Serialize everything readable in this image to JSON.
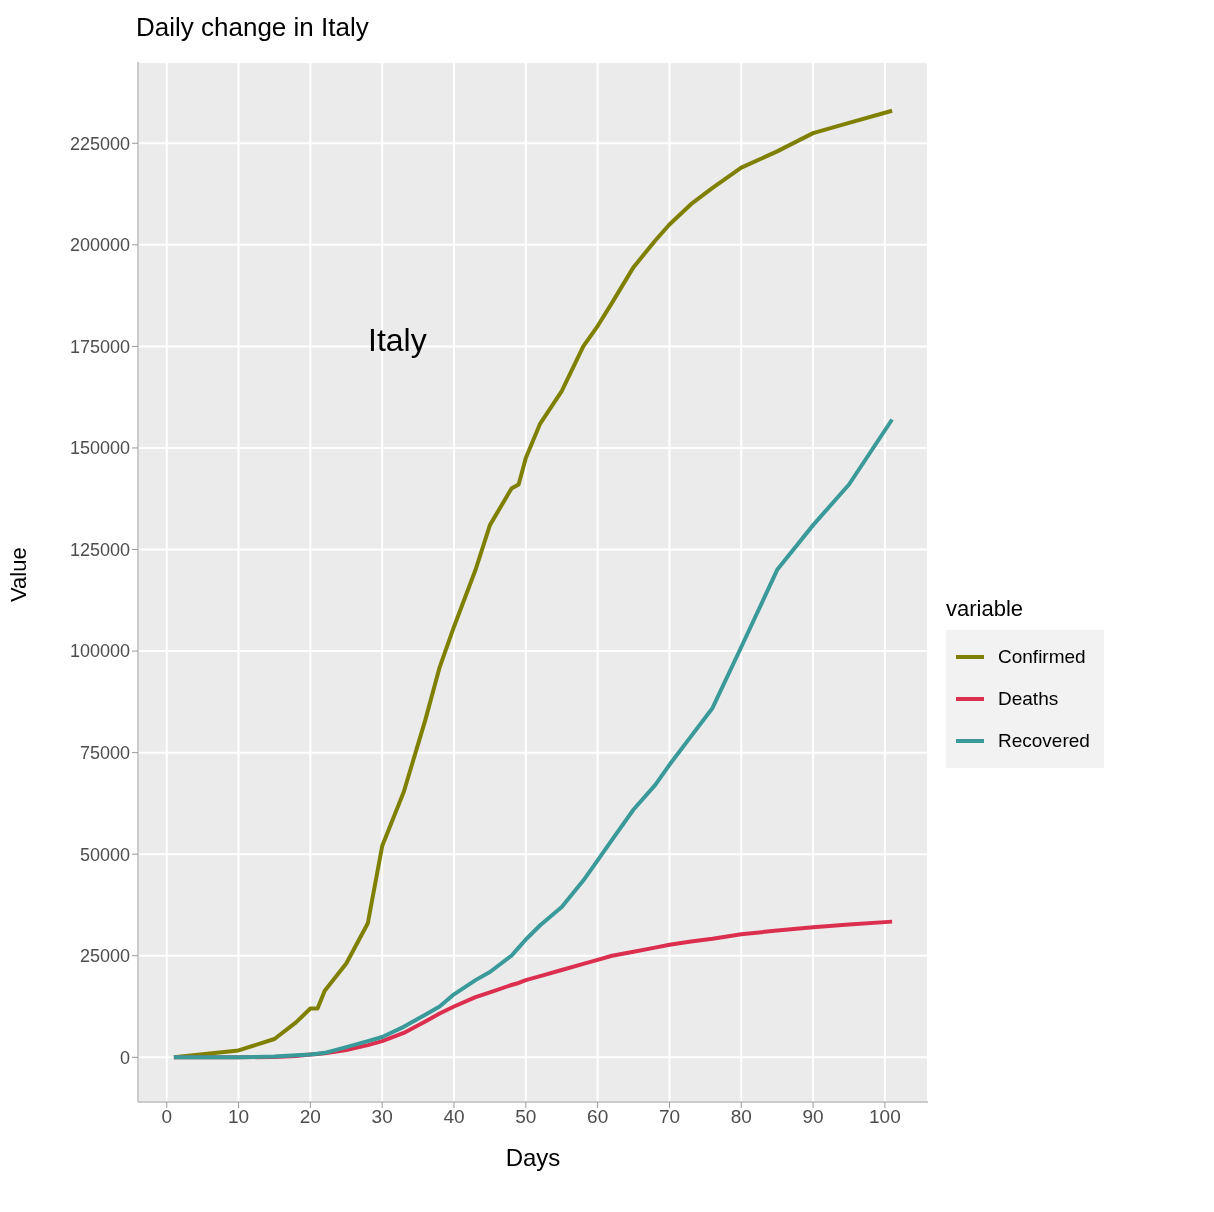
{
  "chart_data": {
    "type": "line",
    "title": "Daily change in Italy",
    "xlabel": "Days",
    "ylabel": "Value",
    "legend_title": "variable",
    "annotations": [
      "Italy"
    ],
    "x": [
      1,
      10,
      15,
      18,
      20,
      21,
      22,
      25,
      28,
      30,
      33,
      36,
      38,
      40,
      43,
      45,
      48,
      49,
      50,
      52,
      55,
      58,
      60,
      62,
      65,
      68,
      70,
      73,
      76,
      80,
      85,
      90,
      95,
      101
    ],
    "series": [
      {
        "name": "Confirmed",
        "color": "#808000",
        "values": [
          0,
          1700,
          4500,
          8600,
          12000,
          12000,
          16400,
          23100,
          33000,
          52000,
          65300,
          83000,
          96000,
          106000,
          120000,
          131000,
          140000,
          141000,
          147500,
          156000,
          164000,
          175000,
          180000,
          185700,
          194500,
          201000,
          205000,
          210000,
          214000,
          219000,
          223000,
          227500,
          230000,
          233000
        ]
      },
      {
        "name": "Deaths",
        "color": "#dc2f4f",
        "values": [
          0,
          0,
          100,
          300,
          700,
          800,
          1000,
          1800,
          3000,
          4000,
          6000,
          8800,
          10800,
          12500,
          14800,
          16000,
          17800,
          18300,
          19000,
          20000,
          21500,
          23000,
          24000,
          25000,
          26000,
          27000,
          27700,
          28500,
          29200,
          30300,
          31200,
          32000,
          32700,
          33400
        ]
      },
      {
        "name": "Recovered",
        "color": "#3a9a9a",
        "values": [
          0,
          0,
          200,
          500,
          700,
          900,
          1100,
          2500,
          4000,
          5000,
          7500,
          10500,
          12500,
          15500,
          19000,
          21000,
          25000,
          27000,
          29000,
          32500,
          37000,
          43500,
          48500,
          53500,
          61000,
          67000,
          72000,
          79000,
          86000,
          101000,
          120000,
          131000,
          141000,
          157000
        ]
      }
    ],
    "xlim": [
      -4,
      106
    ],
    "xticks": [
      0,
      10,
      20,
      30,
      40,
      50,
      60,
      70,
      80,
      90,
      100
    ],
    "ylim": [
      -11000,
      245000
    ],
    "yticks": [
      0,
      25000,
      50000,
      75000,
      100000,
      125000,
      150000,
      175000,
      200000,
      225000
    ],
    "grid": true,
    "legend": "right",
    "marker": "none",
    "line_style": "solid"
  }
}
